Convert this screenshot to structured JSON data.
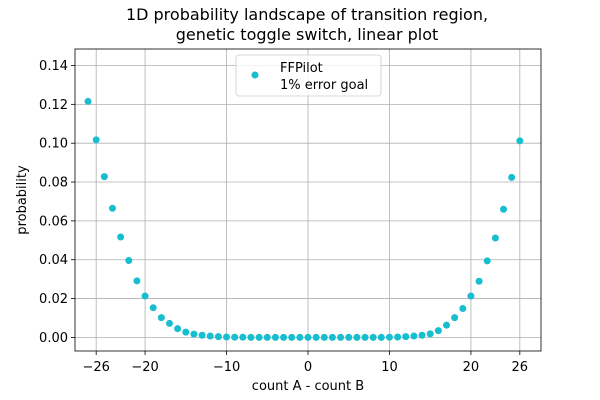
{
  "chart_data": {
    "type": "scatter",
    "title": [
      "1D probability landscape of transition region,",
      "genetic toggle switch, linear plot"
    ],
    "xlabel": "count A - count B",
    "ylabel": "probability",
    "xlim": [
      -28.6,
      28.6
    ],
    "ylim": [
      -0.007,
      0.1485
    ],
    "xticks": [
      -26,
      -20,
      -10,
      0,
      10,
      20,
      26
    ],
    "xtick_labels": [
      "−26",
      "−20",
      "−10",
      "0",
      "10",
      "20",
      "26"
    ],
    "yticks": [
      0.0,
      0.02,
      0.04,
      0.06,
      0.08,
      0.1,
      0.12,
      0.14
    ],
    "ytick_labels": [
      "0.00",
      "0.02",
      "0.04",
      "0.06",
      "0.08",
      "0.10",
      "0.12",
      "0.14"
    ],
    "grid": true,
    "legend_position": "top-center",
    "legend_label": [
      "FFPilot",
      "1% error goal"
    ],
    "marker_color": "#17becf",
    "series": [
      {
        "name": "FFPilot\n1% error goal",
        "x": [
          -27,
          -26,
          -25,
          -24,
          -23,
          -22,
          -21,
          -20,
          -19,
          -18,
          -17,
          -16,
          -15,
          -14,
          -13,
          -12,
          -11,
          -10,
          -9,
          -8,
          -7,
          -6,
          -5,
          -4,
          -3,
          -2,
          -1,
          0,
          1,
          2,
          3,
          4,
          5,
          6,
          7,
          8,
          9,
          10,
          11,
          12,
          13,
          14,
          15,
          16,
          17,
          18,
          19,
          20,
          21,
          22,
          23,
          24,
          25,
          26
        ],
        "y": [
          0.1215,
          0.1017,
          0.0828,
          0.0665,
          0.0517,
          0.0396,
          0.0291,
          0.0213,
          0.0153,
          0.0102,
          0.0072,
          0.0045,
          0.0027,
          0.0017,
          0.0011,
          0.0007,
          0.0004,
          0.0002,
          0.0001,
          0.0001,
          0.0,
          0.0,
          0.0,
          0.0,
          0.0,
          0.0,
          0.0,
          0.0,
          0.0,
          0.0,
          0.0,
          0.0,
          0.0,
          0.0,
          0.0,
          0.0,
          0.0,
          0.0001,
          0.0002,
          0.0004,
          0.0007,
          0.0011,
          0.0018,
          0.0035,
          0.0063,
          0.0102,
          0.0149,
          0.0213,
          0.0289,
          0.0394,
          0.0512,
          0.066,
          0.0824,
          0.1012
        ]
      }
    ]
  }
}
